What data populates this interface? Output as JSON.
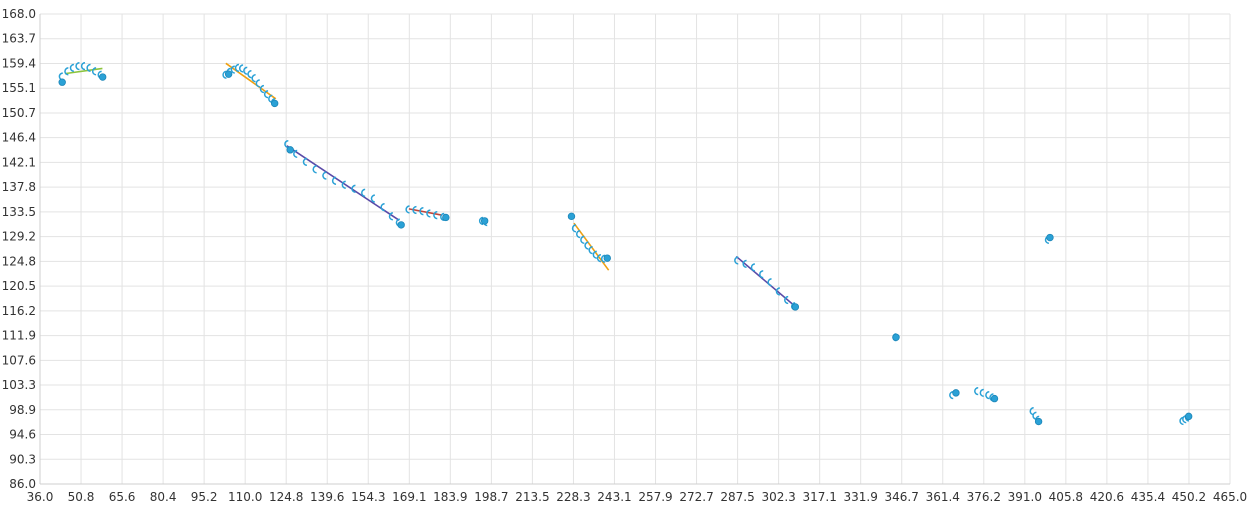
{
  "chart_data": {
    "type": "scatter",
    "title": "",
    "xlabel": "",
    "ylabel": "",
    "xlim": [
      36.0,
      465.0
    ],
    "ylim": [
      86.0,
      168.0
    ],
    "grid": true,
    "legend": "none",
    "x_ticks": [
      "36.0",
      "50.8",
      "65.6",
      "80.4",
      "95.2",
      "110.0",
      "124.8",
      "139.6",
      "154.3",
      "169.1",
      "183.9",
      "198.7",
      "213.5",
      "228.3",
      "243.1",
      "257.9",
      "272.7",
      "287.5",
      "302.3",
      "317.1",
      "331.9",
      "346.7",
      "361.4",
      "376.2",
      "391.0",
      "405.8",
      "420.6",
      "435.4",
      "450.2",
      "465.0"
    ],
    "y_ticks": [
      "168.0",
      "163.7",
      "159.4",
      "155.1",
      "150.7",
      "146.4",
      "142.1",
      "137.8",
      "133.5",
      "129.2",
      "124.8",
      "120.5",
      "116.2",
      "111.9",
      "107.6",
      "103.3",
      "98.9",
      "94.6",
      "90.3",
      "86.0"
    ],
    "colors": {
      "points": "#2aa1d6",
      "grid": "#e3e3e3",
      "trend_orange": "#f0a010",
      "trend_green": "#8cc43c",
      "trend_purple": "#5a4aa8",
      "trend_red": "#c0453a"
    },
    "markers": [
      {
        "x": 44.0,
        "y": 156.1
      },
      {
        "x": 58.6,
        "y": 157.0
      },
      {
        "x": 104.0,
        "y": 157.5
      },
      {
        "x": 120.6,
        "y": 152.4
      },
      {
        "x": 126.2,
        "y": 144.3
      },
      {
        "x": 166.2,
        "y": 131.2
      },
      {
        "x": 182.3,
        "y": 132.5
      },
      {
        "x": 196.3,
        "y": 131.9
      },
      {
        "x": 227.6,
        "y": 132.7
      },
      {
        "x": 240.5,
        "y": 125.4
      },
      {
        "x": 308.3,
        "y": 116.9
      },
      {
        "x": 344.6,
        "y": 111.6
      },
      {
        "x": 366.2,
        "y": 101.9
      },
      {
        "x": 380.1,
        "y": 100.9
      },
      {
        "x": 396.0,
        "y": 96.9
      },
      {
        "x": 400.1,
        "y": 129.0
      },
      {
        "x": 450.1,
        "y": 97.8
      }
    ],
    "trails": [
      {
        "x": [
          43.5,
          45.5,
          47.5,
          49.5,
          51.5,
          53.5,
          55.5,
          57.5
        ],
        "y": [
          157.1,
          158.0,
          158.6,
          158.9,
          158.9,
          158.6,
          158.0,
          157.4
        ]
      },
      {
        "x": [
          102.5,
          104.0,
          105.5,
          107.0,
          108.5,
          110.0,
          111.5,
          113.0,
          114.5,
          116.0,
          117.5,
          119.0,
          120.0
        ],
        "y": [
          157.4,
          157.9,
          158.3,
          158.6,
          158.5,
          158.1,
          157.5,
          156.8,
          155.9,
          154.9,
          154.0,
          153.2,
          152.6
        ]
      },
      {
        "x": [
          124.8,
          128.0,
          131.5,
          135.0,
          138.5,
          142.0,
          145.5,
          149.0,
          152.5,
          156.0,
          159.5,
          162.5,
          165.0
        ],
        "y": [
          145.3,
          143.6,
          142.2,
          140.9,
          139.8,
          138.9,
          138.2,
          137.5,
          136.8,
          135.8,
          134.3,
          132.7,
          131.6
        ]
      },
      {
        "x": [
          168.5,
          171.0,
          173.5,
          176.0,
          178.5,
          181.0
        ],
        "y": [
          133.9,
          133.8,
          133.6,
          133.2,
          132.9,
          132.6
        ]
      },
      {
        "x": [
          195.0,
          196.5
        ],
        "y": [
          131.9,
          131.7
        ]
      },
      {
        "x": [
          228.5,
          230.0,
          231.5,
          233.0,
          234.5,
          236.0,
          237.5,
          239.0
        ],
        "y": [
          130.6,
          129.6,
          128.6,
          127.6,
          126.8,
          126.0,
          125.4,
          125.3
        ]
      },
      {
        "x": [
          287.0,
          290.0,
          293.0,
          296.0,
          299.0,
          302.0,
          305.0,
          307.5
        ],
        "y": [
          125.0,
          124.4,
          123.8,
          122.6,
          121.2,
          119.6,
          118.1,
          117.0
        ]
      },
      {
        "x": [
          399.0
        ],
        "y": [
          128.6
        ]
      },
      {
        "x": [
          344.0
        ],
        "y": [
          111.6
        ]
      },
      {
        "x": [
          364.5
        ],
        "y": [
          101.5
        ]
      },
      {
        "x": [
          373.5,
          375.5,
          377.5,
          379.0
        ],
        "y": [
          102.2,
          101.9,
          101.5,
          101.1
        ]
      },
      {
        "x": [
          393.5,
          394.5,
          395.5
        ],
        "y": [
          98.7,
          97.9,
          97.2
        ]
      },
      {
        "x": [
          447.5,
          448.5,
          449.5
        ],
        "y": [
          97.0,
          97.3,
          97.6
        ]
      }
    ],
    "trend_lines": [
      {
        "color": "trend_green",
        "x": [
          45.0,
          58.5
        ],
        "y": [
          157.6,
          158.5
        ]
      },
      {
        "color": "trend_orange",
        "x": [
          103.0,
          121.0
        ],
        "y": [
          159.4,
          153.2
        ]
      },
      {
        "color": "trend_purple",
        "x": [
          125.0,
          165.5
        ],
        "y": [
          145.0,
          132.0
        ]
      },
      {
        "color": "trend_red",
        "x": [
          169.0,
          181.0
        ],
        "y": [
          134.0,
          132.9
        ]
      },
      {
        "color": "trend_green",
        "x": [
          195.0,
          197.5
        ],
        "y": [
          131.9,
          131.9
        ]
      },
      {
        "color": "trend_orange",
        "x": [
          228.5,
          241.0
        ],
        "y": [
          131.5,
          123.3
        ]
      },
      {
        "color": "trend_purple",
        "x": [
          287.0,
          308.0
        ],
        "y": [
          125.7,
          117.1
        ]
      },
      {
        "color": "trend_purple",
        "x": [
          343.5,
          345.0
        ],
        "y": [
          111.7,
          111.4
        ]
      }
    ]
  }
}
